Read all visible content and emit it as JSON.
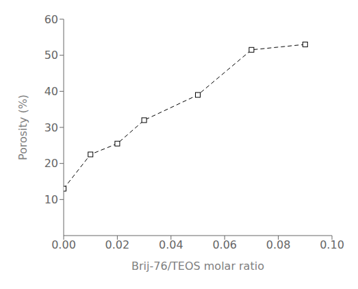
{
  "chart_data": {
    "type": "line",
    "xlabel": "Brij-76/TEOS molar ratio",
    "ylabel": "Porosity (%)",
    "x": [
      0.0,
      0.01,
      0.02,
      0.03,
      0.05,
      0.07,
      0.09
    ],
    "values": [
      13.0,
      22.5,
      25.5,
      32.0,
      39.0,
      51.5,
      53.0
    ],
    "xlim": [
      0.0,
      0.1
    ],
    "ylim": [
      0,
      60
    ],
    "xticks": [
      {
        "value": 0.0,
        "label": "0.00"
      },
      {
        "value": 0.02,
        "label": "0.02"
      },
      {
        "value": 0.04,
        "label": "0.04"
      },
      {
        "value": 0.06,
        "label": "0.06"
      },
      {
        "value": 0.08,
        "label": "0.08"
      },
      {
        "value": 0.1,
        "label": "0.10"
      }
    ],
    "yticks": [
      10,
      20,
      30,
      40,
      50,
      60
    ],
    "color": "#000000",
    "marker": "square",
    "line_style": "dashed",
    "grid": false
  }
}
